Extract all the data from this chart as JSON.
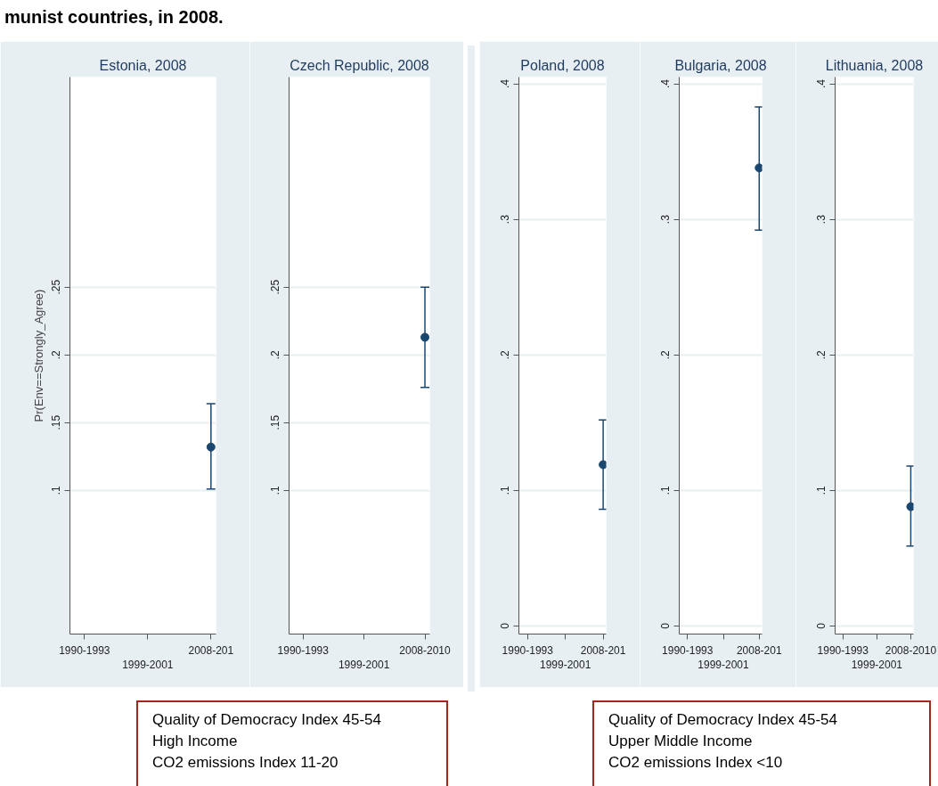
{
  "chart_data": [
    {
      "type": "scatter",
      "title": "Estonia, 2008",
      "ylabel": "Pr(Env==Strongly_Agree)",
      "categories": [
        "1990-1993",
        "1999-2001",
        "2008-201"
      ],
      "values": [
        null,
        null,
        0.132
      ],
      "errors": [
        null,
        null,
        [
          0.101,
          0.164
        ]
      ],
      "color": "#1a476f",
      "ylim": [
        -0.006,
        0.405
      ],
      "yticks": [
        {
          "value": 0.1,
          "label": ".1"
        },
        {
          "value": 0.15,
          "label": ".15"
        },
        {
          "value": 0.2,
          "label": ".2"
        },
        {
          "value": 0.25,
          "label": ".25"
        }
      ],
      "grid": "y",
      "marker": "circle"
    },
    {
      "type": "scatter",
      "title": "Czech Republic, 2008",
      "categories": [
        "1990-1993",
        "1999-2001",
        "2008-2010"
      ],
      "values": [
        null,
        null,
        0.213
      ],
      "errors": [
        null,
        null,
        [
          0.176,
          0.25
        ]
      ],
      "color": "#1a476f",
      "ylim": [
        -0.006,
        0.405
      ],
      "yticks": [
        {
          "value": 0.1,
          "label": ".1"
        },
        {
          "value": 0.15,
          "label": ".15"
        },
        {
          "value": 0.2,
          "label": ".2"
        },
        {
          "value": 0.25,
          "label": ".25"
        }
      ],
      "grid": "y",
      "marker": "circle"
    },
    {
      "type": "scatter",
      "title": "Poland, 2008",
      "categories": [
        "1990-1993",
        "1999-2001",
        "2008-201"
      ],
      "values": [
        null,
        null,
        0.119
      ],
      "errors": [
        null,
        null,
        [
          0.086,
          0.152
        ]
      ],
      "color": "#1a476f",
      "ylim": [
        -0.006,
        0.405
      ],
      "yticks": [
        {
          "value": 0,
          "label": "0"
        },
        {
          "value": 0.1,
          "label": ".1"
        },
        {
          "value": 0.2,
          "label": ".2"
        },
        {
          "value": 0.3,
          "label": ".3"
        },
        {
          "value": 0.4,
          "label": ".4"
        }
      ],
      "grid": "y",
      "marker": "circle"
    },
    {
      "type": "scatter",
      "title": "Bulgaria, 2008",
      "categories": [
        "1990-1993",
        "1999-2001",
        "2008-201"
      ],
      "values": [
        null,
        null,
        0.338
      ],
      "errors": [
        null,
        null,
        [
          0.292,
          0.383
        ]
      ],
      "color": "#1a476f",
      "ylim": [
        -0.006,
        0.405
      ],
      "yticks": [
        {
          "value": 0,
          "label": "0"
        },
        {
          "value": 0.1,
          "label": ".1"
        },
        {
          "value": 0.2,
          "label": ".2"
        },
        {
          "value": 0.3,
          "label": ".3"
        },
        {
          "value": 0.4,
          "label": ".4"
        }
      ],
      "grid": "y",
      "marker": "circle"
    },
    {
      "type": "scatter",
      "title": "Lithuania, 2008",
      "categories": [
        "1990-1993",
        "1999-2001",
        "2008-2010"
      ],
      "values": [
        null,
        null,
        0.088
      ],
      "errors": [
        null,
        null,
        [
          0.059,
          0.118
        ]
      ],
      "color": "#1a476f",
      "ylim": [
        -0.006,
        0.405
      ],
      "yticks": [
        {
          "value": 0,
          "label": "0"
        },
        {
          "value": 0.1,
          "label": ".1"
        },
        {
          "value": 0.2,
          "label": ".2"
        },
        {
          "value": 0.3,
          "label": ".3"
        },
        {
          "value": 0.4,
          "label": ".4"
        }
      ],
      "grid": "y",
      "marker": "circle"
    },
    {
      "type": "other",
      "title": "munist countries, in 2008."
    },
    {
      "type": "other",
      "annotations": [
        "Quality of Democracy Index 45-54",
        "High Income",
        "CO2 emissions Index 11-20"
      ]
    },
    {
      "type": "other",
      "annotations": [
        "Quality of Democracy Index 45-54",
        "Upper Middle Income",
        "CO2 emissions Index <10"
      ]
    }
  ]
}
